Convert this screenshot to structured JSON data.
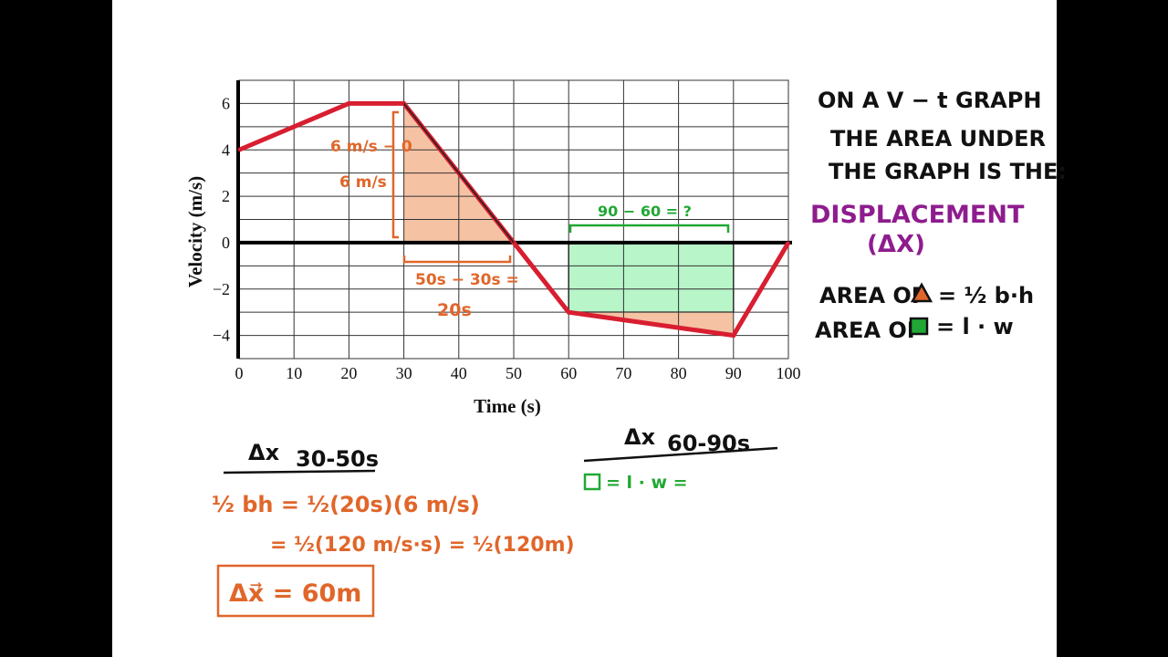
{
  "chart_data": {
    "type": "line",
    "xlabel": "Time (s)",
    "ylabel": "Velocity (m/s)",
    "xlim": [
      0,
      100
    ],
    "ylim": [
      -5,
      7
    ],
    "x_ticks": [
      "0",
      "10",
      "20",
      "30",
      "40",
      "50",
      "60",
      "70",
      "80",
      "90",
      "100"
    ],
    "y_ticks": [
      "6",
      "4",
      "2",
      "0",
      "−2",
      "−4"
    ],
    "series": [
      {
        "x": [
          0,
          20,
          30,
          50,
          60,
          90,
          100
        ],
        "y": [
          4,
          6,
          6,
          0,
          -3,
          -4,
          0
        ],
        "color": "#d81e30"
      }
    ],
    "grid": true,
    "shaded_regions": [
      {
        "shape": "triangle",
        "color": "#f6c2a4",
        "points": [
          [
            30,
            0
          ],
          [
            30,
            6
          ],
          [
            50,
            0
          ]
        ]
      },
      {
        "shape": "rectangle",
        "color": "#b8f5c8",
        "points": [
          [
            60,
            0
          ],
          [
            90,
            0
          ],
          [
            90,
            -3
          ],
          [
            60,
            -3
          ]
        ]
      },
      {
        "shape": "triangle",
        "color": "#f6c2a4",
        "points": [
          [
            60,
            -3
          ],
          [
            90,
            -3
          ],
          [
            90,
            -4
          ]
        ]
      }
    ]
  },
  "annotations": {
    "height_top": "6 m/s − 0",
    "height_bottom": "6 m/s",
    "base_top": "50s − 30s =",
    "base_bottom": "20s",
    "bracket_green": "90 − 60 = ?"
  },
  "notes": {
    "line1": "ON A  V − t GRAPH",
    "line2": "THE AREA UNDER",
    "line3": "THE GRAPH IS THE:",
    "line4": "DISPLACEMENT",
    "line5": "(ΔX)",
    "area_tri_prefix": "AREA OF",
    "area_tri_formula": "= ½ b·h",
    "area_rect_prefix": "AREA OF",
    "area_rect_formula": "= l · w"
  },
  "work_left": {
    "heading": "Δx",
    "heading_sub": "30-50s",
    "line1": "½ bh = ½(20s)(6 m/s)",
    "line2": "= ½(120 m/s·s) = ½(120m)",
    "answer": "Δx⃗ = 60m"
  },
  "work_right": {
    "heading": "Δx",
    "heading_sub": "60-90s",
    "line1_formula": "= l · w ="
  },
  "colors": {
    "orange": "#e0662a",
    "green": "#21a834",
    "purple": "#8e1c8e",
    "line": "#d81e30"
  }
}
